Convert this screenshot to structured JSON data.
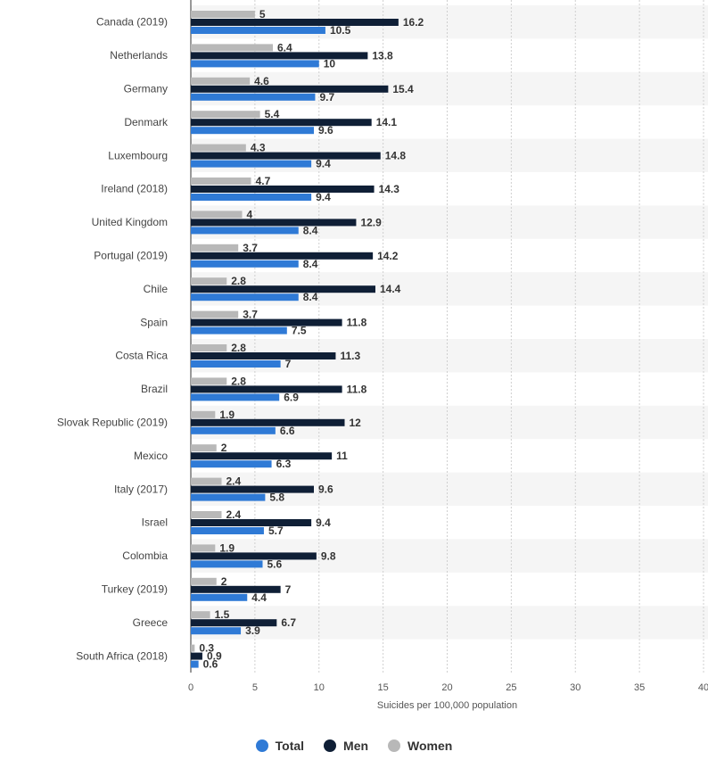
{
  "chart_data": {
    "type": "bar",
    "orientation": "horizontal",
    "xlabel": "Suicides per 100,000 population",
    "xlim": [
      0,
      40
    ],
    "xticks": [
      0,
      5,
      10,
      15,
      20,
      25,
      30,
      35,
      40
    ],
    "grid": true,
    "legend_position": "bottom",
    "categories": [
      "Canada (2019)",
      "Netherlands",
      "Germany",
      "Denmark",
      "Luxembourg",
      "Ireland (2018)",
      "United Kingdom",
      "Portugal (2019)",
      "Chile",
      "Spain",
      "Costa Rica",
      "Brazil",
      "Slovak Republic (2019)",
      "Mexico",
      "Italy (2017)",
      "Israel",
      "Colombia",
      "Turkey (2019)",
      "Greece",
      "South Africa (2018)"
    ],
    "series": [
      {
        "name": "Women",
        "color": "#b8b8b8",
        "values": [
          5,
          6.4,
          4.6,
          5.4,
          4.3,
          4.7,
          4,
          3.7,
          2.8,
          3.7,
          2.8,
          2.8,
          1.9,
          2,
          2.4,
          2.4,
          1.9,
          2,
          1.5,
          0.3
        ]
      },
      {
        "name": "Men",
        "color": "#0f1f36",
        "values": [
          16.2,
          13.8,
          15.4,
          14.1,
          14.8,
          14.3,
          12.9,
          14.2,
          14.4,
          11.8,
          11.3,
          11.8,
          12,
          11,
          9.6,
          9.4,
          9.8,
          7,
          6.7,
          0.9
        ]
      },
      {
        "name": "Total",
        "color": "#2f7ad6",
        "values": [
          10.5,
          10,
          9.7,
          9.6,
          9.4,
          9.4,
          8.4,
          8.4,
          8.4,
          7.5,
          7,
          6.9,
          6.6,
          6.3,
          5.8,
          5.7,
          5.6,
          4.4,
          3.9,
          0.6
        ]
      }
    ]
  },
  "legend": {
    "items": [
      {
        "label": "Total",
        "color": "#2f7ad6"
      },
      {
        "label": "Men",
        "color": "#0f1f36"
      },
      {
        "label": "Women",
        "color": "#b8b8b8"
      }
    ]
  }
}
